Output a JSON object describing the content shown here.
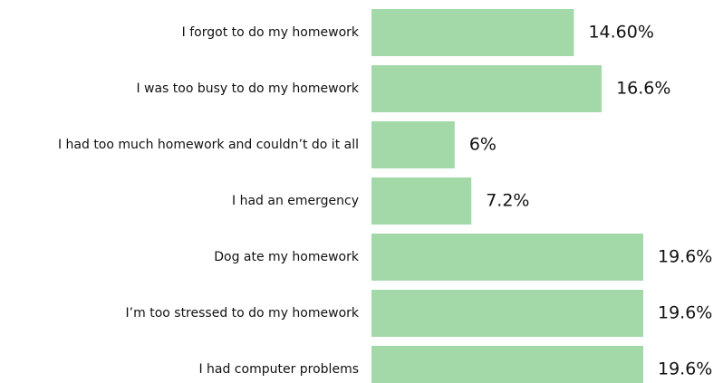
{
  "chart_data": {
    "type": "barh",
    "categories": [
      "I forgot to do my homework",
      "I was too busy to do my homework",
      "I had too much homework and couldn’t do it all",
      "I had an emergency",
      "Dog ate my homework",
      "I’m too stressed to do my homework",
      "I had computer problems"
    ],
    "values": [
      14.6,
      16.6,
      6,
      7.2,
      19.6,
      19.6,
      19.6
    ],
    "value_labels": [
      "14.60%",
      "16.6%",
      "6%",
      "7.2%",
      "19.6%",
      "19.6%",
      "19.6%"
    ],
    "color": "#a3d9a9"
  }
}
